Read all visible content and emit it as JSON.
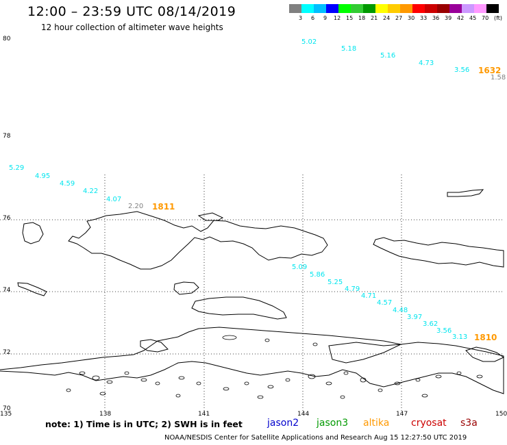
{
  "header": {
    "title": "12:00 – 23:59 UTC 08/14/2019",
    "subtitle": "12 hour collection of altimeter wave heights"
  },
  "legend": {
    "colors": [
      "#808080",
      "#00ffff",
      "#00bfff",
      "#0000ff",
      "#00ff00",
      "#33cc33",
      "#009900",
      "#ffff00",
      "#ffcc00",
      "#ff9900",
      "#ff0000",
      "#cc0000",
      "#990000",
      "#990099",
      "#cc99ff",
      "#ff99ff",
      "#000000"
    ],
    "labels": [
      "3",
      "6",
      "9",
      "12",
      "15",
      "18",
      "21",
      "24",
      "27",
      "30",
      "33",
      "36",
      "39",
      "42",
      "45",
      "70",
      "(ft)"
    ]
  },
  "axes": {
    "lat_labels": [
      "80",
      "78",
      "76",
      "74",
      "72",
      "70"
    ],
    "lon_labels": [
      "135",
      "138",
      "141",
      "144",
      "147",
      "150"
    ]
  },
  "tracks": [
    {
      "pass": "1632",
      "pass_color": "#ff9900",
      "points": [
        {
          "v": "5.02",
          "c": "#00e5ee"
        },
        {
          "v": "5.18",
          "c": "#00e5ee"
        },
        {
          "v": "5.16",
          "c": "#00e5ee"
        },
        {
          "v": "4.73",
          "c": "#00e5ee"
        },
        {
          "v": "3.56",
          "c": "#00e5ee"
        },
        {
          "v": "1.58",
          "c": "#808080"
        }
      ]
    },
    {
      "pass": "1811",
      "pass_color": "#ff9900",
      "points": [
        {
          "v": "5.29",
          "c": "#00e5ee"
        },
        {
          "v": "4.95",
          "c": "#00e5ee"
        },
        {
          "v": "4.59",
          "c": "#00e5ee"
        },
        {
          "v": "4.22",
          "c": "#00e5ee"
        },
        {
          "v": "4.07",
          "c": "#00e5ee"
        },
        {
          "v": "2.20",
          "c": "#808080"
        }
      ]
    },
    {
      "pass": "1810",
      "pass_color": "#ff9900",
      "points": [
        {
          "v": "5.09",
          "c": "#00e5ee"
        },
        {
          "v": "5.86",
          "c": "#00e5ee"
        },
        {
          "v": "5.25",
          "c": "#00e5ee"
        },
        {
          "v": "4.79",
          "c": "#00e5ee"
        },
        {
          "v": "4.71",
          "c": "#00e5ee"
        },
        {
          "v": "4.57",
          "c": "#00e5ee"
        },
        {
          "v": "4.48",
          "c": "#00e5ee"
        },
        {
          "v": "3.97",
          "c": "#00e5ee"
        },
        {
          "v": "3.62",
          "c": "#00e5ee"
        },
        {
          "v": "3.56",
          "c": "#00e5ee"
        },
        {
          "v": "3.13",
          "c": "#00e5ee"
        }
      ]
    }
  ],
  "footer": {
    "note": "note: 1) Time is in UTC; 2) SWH is in feet",
    "satellites": [
      {
        "name": "jason2",
        "color": "#0000cc"
      },
      {
        "name": "jason3",
        "color": "#009900"
      },
      {
        "name": "altika",
        "color": "#ff9900"
      },
      {
        "name": "cryosat",
        "color": "#cc0000"
      },
      {
        "name": "s3a",
        "color": "#990000"
      }
    ],
    "credit": "NOAA/NESDIS Center for Satellite Applications and Research   Aug 15 12:27:50 UTC 2019"
  }
}
